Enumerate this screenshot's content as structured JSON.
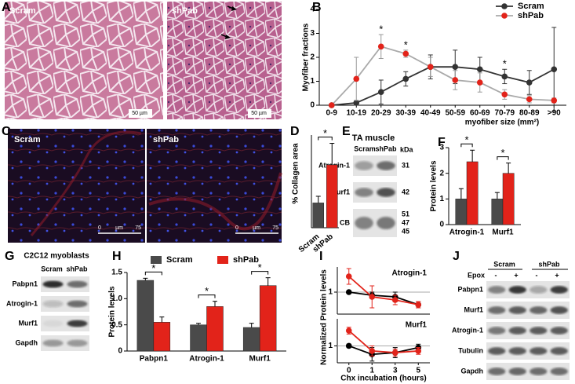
{
  "panels": {
    "A": {
      "letter": "A",
      "left": {
        "label": "Scram",
        "scale": "50 µm"
      },
      "right": {
        "label": "shPab",
        "scale": "50 µm"
      }
    },
    "B": {
      "letter": "B"
    },
    "C": {
      "letter": "C",
      "left": {
        "label": "Scram",
        "scale": {
          "start": 0,
          "unit": "µm",
          "end": 75
        }
      },
      "right": {
        "label": "shPab",
        "scale": {
          "start": 0,
          "unit": "µm",
          "end": 75
        }
      }
    },
    "D": {
      "letter": "D"
    },
    "E": {
      "letter": "E",
      "title": "TA muscle",
      "lanes": [
        "Scram",
        "shPab"
      ],
      "unit": "kDa",
      "rows": [
        {
          "label": "Atrogin-1",
          "kda": [
            31
          ]
        },
        {
          "label": "Murf1",
          "kda": [
            42
          ]
        },
        {
          "label": "CB",
          "kda": [
            51,
            47,
            45
          ]
        }
      ]
    },
    "F": {
      "letter": "F"
    },
    "G": {
      "letter": "G",
      "title": "C2C12 myoblasts",
      "lanes": [
        "Scram",
        "shPab"
      ],
      "rows": [
        "Pabpn1",
        "Atrogin-1",
        "Murf1",
        "Gapdh"
      ]
    },
    "H": {
      "letter": "H"
    },
    "I": {
      "letter": "I"
    },
    "J": {
      "letter": "J",
      "groups": [
        "Scram",
        "shPab"
      ],
      "treatment": "Epox",
      "conditions": [
        "-",
        "+",
        "-",
        "+"
      ],
      "rows": [
        "Pabpn1",
        "Murf1",
        "Atrogin-1",
        "Tubulin",
        "Gapdh"
      ]
    }
  },
  "chart_data": [
    {
      "type": "line",
      "ylabel": "Myofiber fractions",
      "xlabel": "myofiber size (mm²)",
      "categories": [
        "0-9",
        "10-19",
        "20-29",
        "30-39",
        "40-49",
        "50-59",
        "60-69",
        "70-79",
        "80-89",
        ">90"
      ],
      "series": [
        {
          "name": "Scram",
          "color": "#333333",
          "line_color": "#333333",
          "values": [
            0,
            0.1,
            0.55,
            1.1,
            1.6,
            1.6,
            1.5,
            1.2,
            0.95,
            1.5
          ],
          "errors": [
            0,
            0.1,
            0.5,
            0.3,
            0.5,
            0.7,
            0.5,
            0.3,
            0.5,
            1.75
          ]
        },
        {
          "name": "shPab",
          "color": "#e2231a",
          "line_color": "#aaaaaa",
          "values": [
            0,
            1.1,
            2.45,
            2.15,
            1.6,
            1.05,
            0.95,
            0.45,
            0.25,
            0.2
          ],
          "errors": [
            0,
            0.9,
            0.5,
            0.15,
            0.4,
            0.4,
            0.4,
            0.2,
            0.15,
            0.1
          ]
        }
      ],
      "ylim": [
        0,
        4
      ],
      "yticks": [
        0,
        1,
        2,
        3,
        4
      ],
      "legend": "top-right",
      "annotations": [
        {
          "text": "*",
          "category": "20-29"
        },
        {
          "text": "*",
          "category": "30-39"
        },
        {
          "text": "*",
          "category": "70-79"
        }
      ]
    },
    {
      "type": "bar",
      "ylabel": "% Collagen area",
      "categories": [
        "Scram",
        "shPab"
      ],
      "values": [
        7.5,
        19
      ],
      "errors": [
        2,
        6.5
      ],
      "colors": [
        "#4a4a4a",
        "#e2231a"
      ],
      "ylim": [
        0,
        28
      ],
      "x_label_rotation": -40,
      "annotations": [
        {
          "text": "*"
        }
      ]
    },
    {
      "type": "bar",
      "ylabel": "Protein levels",
      "categories": [
        "Atrogin-1",
        "Murf1"
      ],
      "series": [
        {
          "name": "Scram",
          "color": "#4a4a4a",
          "values": [
            1,
            1
          ],
          "errors": [
            0.4,
            0.25
          ]
        },
        {
          "name": "shPab",
          "color": "#e2231a",
          "values": [
            2.45,
            2.0
          ],
          "errors": [
            0.45,
            0.4
          ]
        }
      ],
      "ylim": [
        0,
        3
      ],
      "yticks": [
        0,
        1,
        2,
        3
      ],
      "annotations": [
        {
          "text": "*",
          "category": "Atrogin-1"
        },
        {
          "text": "*",
          "category": "Murf1"
        }
      ]
    },
    {
      "type": "bar",
      "ylabel": "Protein levels",
      "categories": [
        "Pabpn1",
        "Atrogin-1",
        "Murf1"
      ],
      "series": [
        {
          "name": "Scram",
          "color": "#4a4a4a",
          "values": [
            1.35,
            0.5,
            0.45
          ],
          "errors": [
            0.04,
            0.03,
            0.08
          ]
        },
        {
          "name": "shPab",
          "color": "#e2231a",
          "values": [
            0.55,
            0.85,
            1.25
          ],
          "errors": [
            0.1,
            0.1,
            0.15
          ]
        }
      ],
      "ylim": [
        0,
        1.5
      ],
      "yticks": [
        0,
        {
          "value": 0.5,
          "label": "0.5"
        },
        {
          "value": 1,
          "label": "1.0"
        },
        1.5
      ],
      "legend": "top",
      "annotations": [
        {
          "text": "*",
          "category": "Pabpn1"
        },
        {
          "text": "*",
          "category": "Atrogin-1"
        },
        {
          "text": "*",
          "category": "Murf1"
        }
      ]
    },
    {
      "type": "line",
      "title": "Atrogin-1",
      "ylabel": "Normalized Protein levels",
      "series": [
        {
          "color": "#000000",
          "line_color": "#000000",
          "values": [
            1,
            0.9,
            0.85,
            0.6
          ],
          "errors": [
            0,
            0.1,
            0.15,
            0.1
          ]
        },
        {
          "color": "#e2231a",
          "line_color": "#e2231a",
          "values": [
            1.5,
            0.85,
            0.75,
            0.6
          ],
          "errors": [
            0.25,
            0.35,
            0.15,
            0.1
          ]
        }
      ],
      "ylim": [
        0.3,
        1.8
      ],
      "yticks": [
        1
      ],
      "grid": true
    },
    {
      "type": "line",
      "title": "Murf1",
      "xlabel": "Chx incubation (hours)",
      "categories": [
        0,
        1,
        3,
        5
      ],
      "series": [
        {
          "color": "#000000",
          "line_color": "#000000",
          "values": [
            1,
            0.75,
            0.8,
            0.95
          ],
          "errors": [
            0.05,
            0.2,
            0.15,
            0.1
          ]
        },
        {
          "color": "#e2231a",
          "line_color": "#e2231a",
          "values": [
            1.45,
            0.85,
            0.8,
            0.85
          ],
          "errors": [
            0.1,
            0.15,
            0.1,
            0.1
          ]
        }
      ],
      "ylim": [
        0.5,
        1.8
      ],
      "yticks": [
        1
      ],
      "grid": true
    }
  ]
}
